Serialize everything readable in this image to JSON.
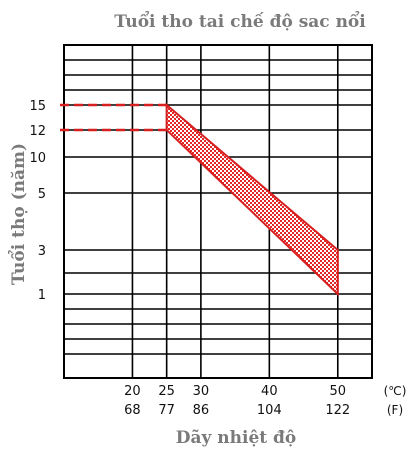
{
  "chart_data": {
    "type": "area",
    "title": "Tuổi tho tai chế độ sac nổi",
    "xlabel": "Dãy nhiệt độ",
    "ylabel": "Tuổi thọ (năm)",
    "x_unit_c": "(℃)",
    "x_unit_f": "(F)",
    "x_ticks_c": [
      "20",
      "25",
      "30",
      "40",
      "50"
    ],
    "x_ticks_f": [
      "68",
      "77",
      "86",
      "104",
      "122"
    ],
    "x_tick_values_c": [
      20,
      25,
      30,
      40,
      50
    ],
    "xlim_c": [
      10,
      55
    ],
    "y_ticks": [
      "15",
      "12",
      "10",
      "5",
      "3",
      "1"
    ],
    "y_tick_values": [
      15,
      12,
      10,
      5,
      3,
      1
    ],
    "series": [
      {
        "values": [
          {
            "x": 25,
            "y_upper": 15,
            "y_lower": 12
          },
          {
            "x": 50,
            "y_upper": 3,
            "y_lower": 1
          }
        ]
      }
    ],
    "reference_lines": [
      {
        "y": 15,
        "x_from": 10,
        "x_to": 25,
        "style": "dashed"
      },
      {
        "y": 12,
        "x_from": 10,
        "x_to": 25,
        "style": "dashed"
      }
    ],
    "grid": true,
    "colors": {
      "band_fill": "#e32626",
      "band_edge": "#d81f1f",
      "dash": "#d81f1f",
      "grid": "#000000",
      "title": "#7a7a7a"
    }
  }
}
